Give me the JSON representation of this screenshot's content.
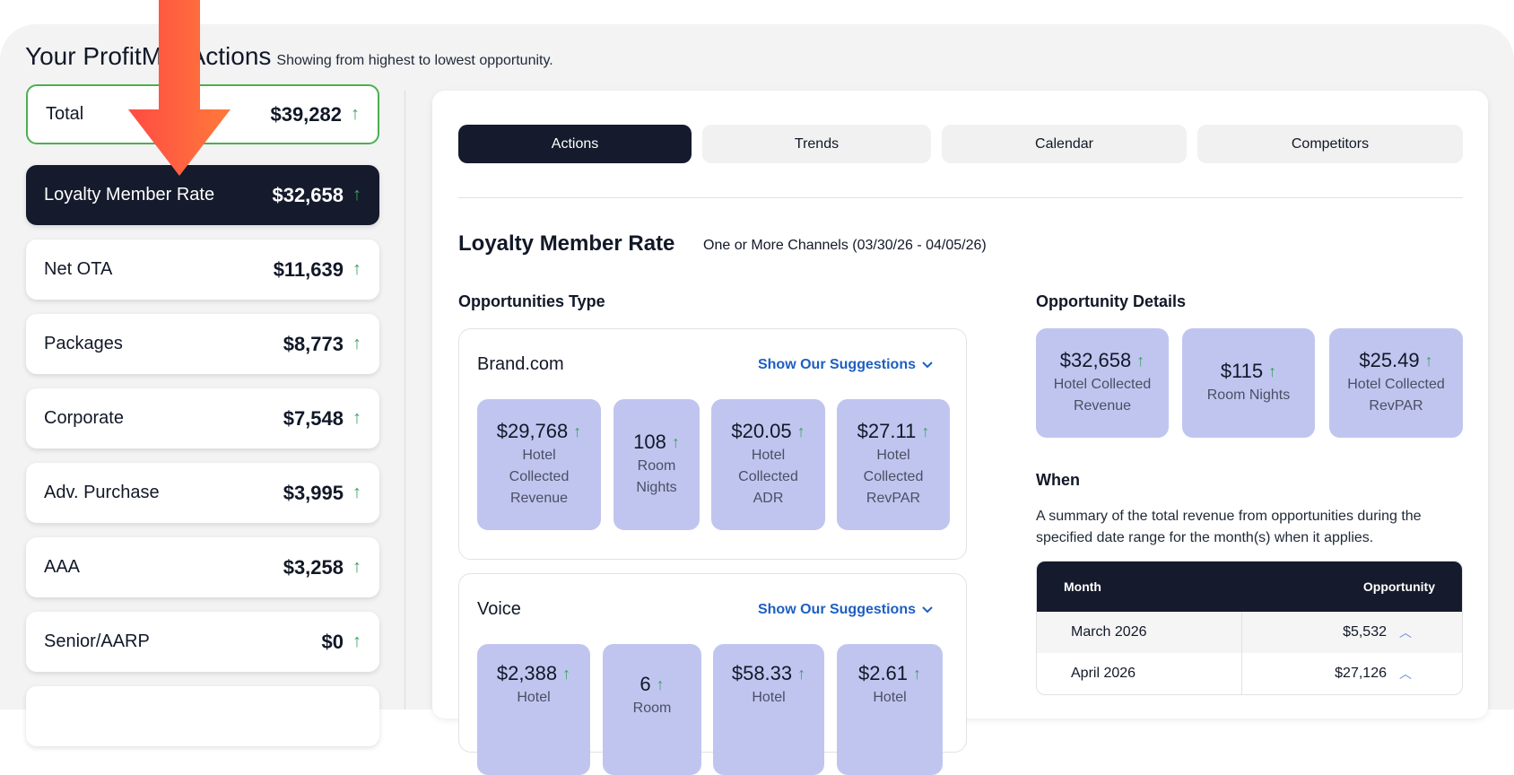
{
  "heading": {
    "title": "Your ProfitMaxActions",
    "subtitle": "Showing from highest to lowest opportunity."
  },
  "sidebar": {
    "items": [
      {
        "label": "Total",
        "amount": "$39,282",
        "arrow": "↑"
      },
      {
        "label": "Loyalty Member Rate",
        "amount": "$32,658",
        "arrow": "↑"
      },
      {
        "label": "Net OTA",
        "amount": "$11,639",
        "arrow": "↑"
      },
      {
        "label": "Packages",
        "amount": "$8,773",
        "arrow": "↑"
      },
      {
        "label": "Corporate",
        "amount": "$7,548",
        "arrow": "↑"
      },
      {
        "label": "Adv. Purchase",
        "amount": "$3,995",
        "arrow": "↑"
      },
      {
        "label": "AAA",
        "amount": "$3,258",
        "arrow": "↑"
      },
      {
        "label": "Senior/AARP",
        "amount": "$0",
        "arrow": "↑"
      }
    ]
  },
  "tabs": [
    "Actions",
    "Trends",
    "Calendar",
    "Competitors"
  ],
  "main": {
    "title": "Loyalty Member Rate",
    "subtitle": "One or More Channels (03/30/26 - 04/05/26)",
    "opportunities_label": "Opportunities Type",
    "details_label": "Opportunity Details",
    "suggestions_label": "Show Our Suggestions",
    "brand": {
      "name": "Brand.com",
      "tiles": [
        {
          "value": "$29,768",
          "caption": "Hotel Collected Revenue"
        },
        {
          "value": "108",
          "caption": "Room Nights"
        },
        {
          "value": "$20.05",
          "caption": "Hotel Collected ADR"
        },
        {
          "value": "$27.11",
          "caption": "Hotel Collected RevPAR"
        }
      ]
    },
    "voice": {
      "name": "Voice",
      "tiles": [
        {
          "value": "$2,388",
          "caption": "Hotel"
        },
        {
          "value": "6",
          "caption": "Room"
        },
        {
          "value": "$58.33",
          "caption": "Hotel"
        },
        {
          "value": "$2.61",
          "caption": "Hotel"
        }
      ]
    },
    "details": [
      {
        "value": "$32,658",
        "caption": "Hotel Collected Revenue"
      },
      {
        "value": "$115",
        "caption": "Room Nights"
      },
      {
        "value": "$25.49",
        "caption": "Hotel Collected RevPAR"
      }
    ],
    "when": {
      "label": "When",
      "description": "A summary of the total revenue from opportunities during the specified date range for the month(s) when it applies.",
      "columns": [
        "Month",
        "Opportunity"
      ],
      "rows": [
        {
          "month": "March 2026",
          "opportunity": "$5,532"
        },
        {
          "month": "April 2026",
          "opportunity": "$27,126"
        }
      ]
    }
  },
  "colors": {
    "accent": "#151a2c",
    "tile": "#c0c5f0",
    "up": "#3ea35f",
    "link": "#1d5fc2",
    "annotation_arrow": "#ff5a3c"
  },
  "icons": {
    "up": "arrow-up-icon",
    "chevron": "chevron-down-icon",
    "caret": "chevron-up-icon"
  }
}
